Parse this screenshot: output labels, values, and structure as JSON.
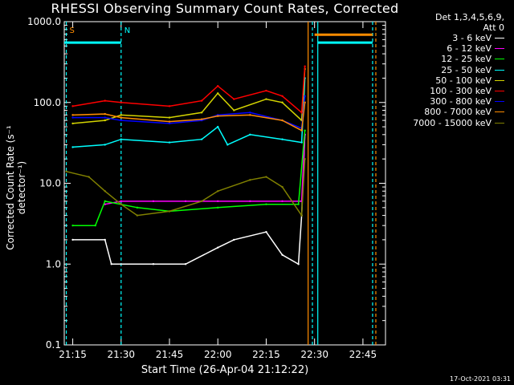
{
  "chart_data": {
    "type": "line",
    "title": "RHESSI Observing Summary Count Rates, Corrected",
    "xlabel": "Start Time (26-Apr-04 21:12:22)",
    "ylabel": "Corrected Count Rate (s⁻¹ detector⁻¹)",
    "y_scale": "log",
    "xlim": [
      "21:12:22",
      "22:52:00"
    ],
    "ylim": [
      0.1,
      1000
    ],
    "x_ticks": [
      "21:15",
      "21:30",
      "21:45",
      "22:00",
      "22:15",
      "22:30",
      "22:45"
    ],
    "y_ticks": [
      "0.1",
      "1.0",
      "10.0",
      "100.0",
      "1000.0"
    ],
    "legend_header": [
      "Det 1,3,4,5,6,9,",
      "Att 0"
    ],
    "legend_position": "right, outside plot",
    "markers": [
      {
        "label": "S",
        "time": "21:13:00",
        "color": "#ff8c00"
      },
      {
        "label": "N",
        "time": "21:30:00",
        "color": "#00ffff"
      }
    ],
    "vertical_lines": [
      {
        "time": "21:13:00",
        "color": "#00ffff",
        "style": "dashed"
      },
      {
        "time": "21:30:00",
        "color": "#00ffff",
        "style": "dashed"
      },
      {
        "time": "22:28:00",
        "color": "#ff8c00",
        "style": "solid"
      },
      {
        "time": "22:29:20",
        "color": "#00ffff",
        "style": "dashed"
      },
      {
        "time": "22:31:00",
        "color": "#00ffff",
        "style": "solid"
      },
      {
        "time": "22:48:00",
        "color": "#00ffff",
        "style": "dashed"
      },
      {
        "time": "22:49:00",
        "color": "#ff8c00",
        "style": "dashed"
      }
    ],
    "flag_bars": [
      {
        "color": "#00ffff",
        "from": "21:12:22",
        "to": "21:30:00",
        "y": 550
      },
      {
        "color": "#00ffff",
        "from": "22:31:00",
        "to": "22:48:00",
        "y": 550
      },
      {
        "color": "#ff8c00",
        "from": "22:30:00",
        "to": "22:48:00",
        "y": 690
      }
    ],
    "series": [
      {
        "name": "3 - 6 keV",
        "color": "#ffffff",
        "x": [
          "21:15",
          "21:25",
          "21:27",
          "21:40",
          "21:50",
          "22:00",
          "22:05",
          "22:15",
          "22:20",
          "22:25",
          "22:26",
          "22:27"
        ],
        "values": [
          2.0,
          2.0,
          1.0,
          1.0,
          1.0,
          1.6,
          2.0,
          2.5,
          1.3,
          1.0,
          4.0,
          40
        ]
      },
      {
        "name": "6 - 12 keV",
        "color": "#ff00ff",
        "x": [
          "21:25",
          "21:30",
          "21:40",
          "21:50",
          "22:00",
          "22:10",
          "22:20",
          "22:26",
          "22:27"
        ],
        "values": [
          5.5,
          6.0,
          6.0,
          6.0,
          6.0,
          6.0,
          6.0,
          6.0,
          40
        ]
      },
      {
        "name": "12 - 25 keV",
        "color": "#00ff00",
        "x": [
          "21:15",
          "21:22",
          "21:25",
          "21:35",
          "21:45",
          "22:00",
          "22:15",
          "22:25",
          "22:27"
        ],
        "values": [
          3.0,
          3.0,
          6.0,
          5.0,
          4.5,
          5.0,
          5.5,
          5.5,
          45
        ]
      },
      {
        "name": "25 - 50 keV",
        "color": "#00ffff",
        "x": [
          "21:15",
          "21:25",
          "21:30",
          "21:45",
          "21:55",
          "22:00",
          "22:03",
          "22:10",
          "22:20",
          "22:26",
          "22:27"
        ],
        "values": [
          28,
          30,
          35,
          32,
          35,
          50,
          30,
          40,
          35,
          32,
          200
        ]
      },
      {
        "name": "50 - 100 keV",
        "color": "#d4d400",
        "x": [
          "21:15",
          "21:25",
          "21:30",
          "21:45",
          "21:55",
          "22:00",
          "22:05",
          "22:15",
          "22:20",
          "22:26",
          "22:27"
        ],
        "values": [
          55,
          60,
          70,
          65,
          75,
          130,
          80,
          110,
          100,
          60,
          260
        ]
      },
      {
        "name": "100 - 300 keV",
        "color": "#ff0000",
        "x": [
          "21:15",
          "21:25",
          "21:30",
          "21:45",
          "21:55",
          "22:00",
          "22:05",
          "22:15",
          "22:20",
          "22:26",
          "22:27"
        ],
        "values": [
          90,
          105,
          100,
          90,
          105,
          160,
          110,
          140,
          120,
          75,
          280
        ]
      },
      {
        "name": "300 - 800 keV",
        "color": "#0000ff",
        "x": [
          "21:15",
          "21:25",
          "21:30",
          "21:45",
          "21:55",
          "22:00",
          "22:10",
          "22:20",
          "22:26",
          "22:27"
        ],
        "values": [
          65,
          65,
          60,
          55,
          60,
          70,
          75,
          60,
          48,
          120
        ]
      },
      {
        "name": "800 - 7000 keV",
        "color": "#ff8c00",
        "x": [
          "21:15",
          "21:25",
          "21:30",
          "21:45",
          "21:55",
          "22:00",
          "22:10",
          "22:20",
          "22:26",
          "22:27"
        ],
        "values": [
          70,
          72,
          65,
          58,
          62,
          68,
          70,
          60,
          45,
          100
        ]
      },
      {
        "name": "7000 - 15000 keV",
        "color": "#808000",
        "x": [
          "21:13",
          "21:20",
          "21:25",
          "21:30",
          "21:35",
          "21:45",
          "21:55",
          "22:00",
          "22:10",
          "22:15",
          "22:20",
          "22:26",
          "22:27"
        ],
        "values": [
          14,
          12,
          8,
          5.5,
          4.0,
          4.5,
          6,
          8,
          11,
          12,
          9,
          4,
          20
        ]
      }
    ]
  },
  "timestamp": "17-Oct-2021 03:31"
}
